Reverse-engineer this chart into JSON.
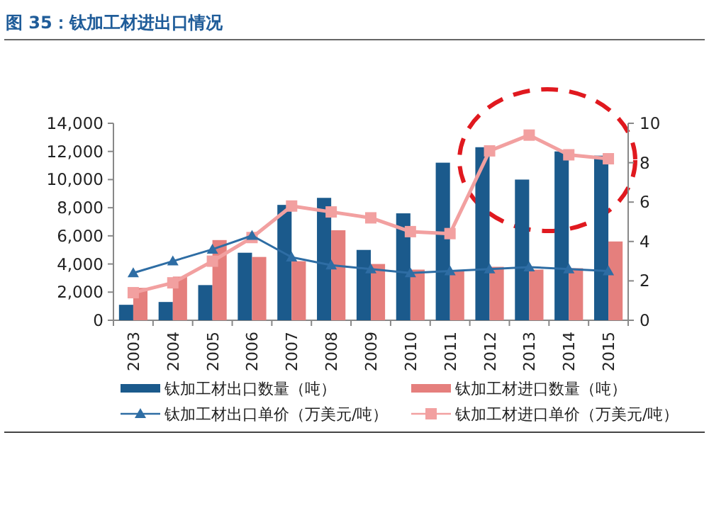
{
  "chart_data": {
    "type": "bar",
    "title": "图 35：钛加工材进出口情况",
    "categories": [
      "2003",
      "2004",
      "2005",
      "2006",
      "2007",
      "2008",
      "2009",
      "2010",
      "2011",
      "2012",
      "2013",
      "2014",
      "2015"
    ],
    "series": [
      {
        "name": "钛加工材出口数量（吨）",
        "color": "#1b5a8c",
        "values": [
          1100,
          1300,
          2500,
          4800,
          8200,
          8700,
          5000,
          7600,
          11200,
          12300,
          10000,
          12000,
          11700
        ]
      },
      {
        "name": "钛加工材进口数量（吨）",
        "color": "#e57f7d",
        "values": [
          2300,
          3100,
          5700,
          4500,
          4200,
          6400,
          4000,
          3600,
          3500,
          3800,
          3600,
          3700,
          5600
        ]
      },
      {
        "name": "钛加工材出口单价（万美元/吨）",
        "type": "line",
        "axis": "y2",
        "marker": "triangle",
        "color": "#2e6da4",
        "values": [
          2.4,
          3.0,
          3.6,
          4.3,
          3.2,
          2.8,
          2.6,
          2.4,
          2.5,
          2.6,
          2.7,
          2.6,
          2.5
        ]
      },
      {
        "name": "钛加工材进口单价（万美元/吨）",
        "type": "line",
        "axis": "y2",
        "marker": "square",
        "color": "#f2a0a0",
        "values": [
          1.4,
          1.9,
          3.0,
          4.2,
          5.8,
          5.5,
          5.2,
          4.5,
          4.4,
          8.6,
          9.4,
          8.4,
          8.2
        ]
      }
    ],
    "ylim": [
      0,
      14000
    ],
    "yticks": [
      0,
      {
        "value": 2000,
        "label": "2,000"
      },
      {
        "value": 4000,
        "label": "4,000"
      },
      {
        "value": 6000,
        "label": "6,000"
      },
      {
        "value": 8000,
        "label": "8,000"
      },
      {
        "value": 10000,
        "label": "10,000"
      },
      {
        "value": 12000,
        "label": "12,000"
      },
      {
        "value": 14000,
        "label": "14,000"
      }
    ],
    "y2lim": [
      0,
      10
    ],
    "y2ticks": [
      0,
      2,
      4,
      6,
      8,
      10
    ],
    "legend": "bottom"
  }
}
